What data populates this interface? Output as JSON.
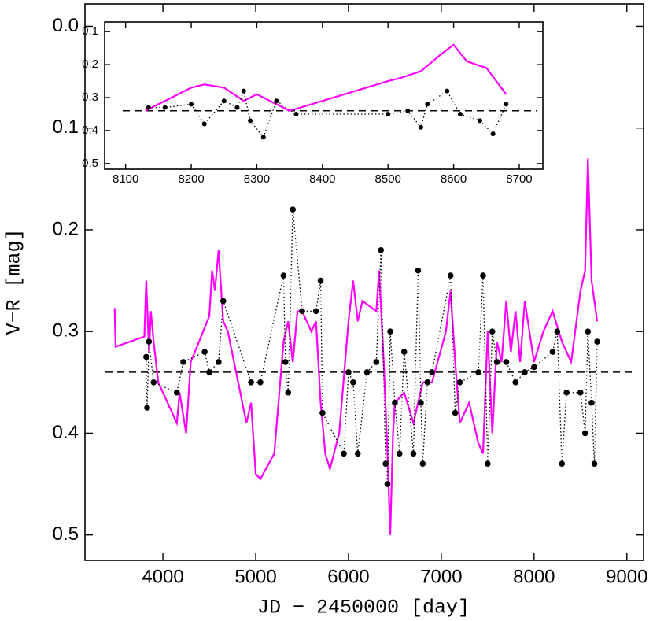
{
  "chart_data": [
    {
      "type": "line",
      "x_label": "JD − 2450000 [day]",
      "y_label": "V−R [mag]",
      "xlim": [
        3160,
        9180
      ],
      "ylim": [
        0.525,
        -0.022
      ],
      "xticks": [
        4000,
        5000,
        6000,
        7000,
        8000,
        9000
      ],
      "yticks": [
        {
          "value": 0,
          "label": "0.0"
        },
        0.1,
        0.2,
        0.3,
        0.4,
        0.5
      ],
      "reference_line": 0.34,
      "series": [
        {
          "mode": "line",
          "color": "#ff00ff",
          "x": [
            3480,
            3490,
            3800,
            3820,
            3850,
            3870,
            3900,
            3950,
            4150,
            4180,
            4250,
            4300,
            4500,
            4530,
            4560,
            4600,
            4650,
            4700,
            4900,
            4950,
            5000,
            5050,
            5200,
            5300,
            5350,
            5400,
            5450,
            5500,
            5600,
            5650,
            5700,
            5750,
            5800,
            5900,
            6000,
            6050,
            6100,
            6150,
            6300,
            6330,
            6380,
            6420,
            6450,
            6480,
            6500,
            6600,
            6700,
            6800,
            6900,
            7050,
            7100,
            7150,
            7200,
            7300,
            7400,
            7450,
            7500,
            7550,
            7600,
            7650,
            7700,
            7750,
            7800,
            7850,
            7900,
            8000,
            8100,
            8200,
            8300,
            8400,
            8500,
            8550,
            8580,
            8620,
            8680
          ],
          "values": [
            0.277,
            0.315,
            0.305,
            0.25,
            0.32,
            0.28,
            0.31,
            0.35,
            0.39,
            0.36,
            0.4,
            0.33,
            0.285,
            0.24,
            0.26,
            0.22,
            0.29,
            0.3,
            0.39,
            0.37,
            0.44,
            0.445,
            0.42,
            0.31,
            0.29,
            0.33,
            0.28,
            0.28,
            0.3,
            0.29,
            0.37,
            0.42,
            0.435,
            0.4,
            0.29,
            0.25,
            0.29,
            0.27,
            0.28,
            0.24,
            0.33,
            0.42,
            0.5,
            0.4,
            0.37,
            0.36,
            0.39,
            0.35,
            0.35,
            0.3,
            0.26,
            0.33,
            0.39,
            0.37,
            0.41,
            0.42,
            0.3,
            0.4,
            0.31,
            0.33,
            0.27,
            0.32,
            0.28,
            0.33,
            0.27,
            0.33,
            0.3,
            0.28,
            0.31,
            0.33,
            0.26,
            0.24,
            0.13,
            0.25,
            0.29
          ]
        },
        {
          "mode": "points",
          "color": "#000000",
          "x": [
            3820,
            3830,
            3850,
            3900,
            4150,
            4220,
            4450,
            4500,
            4600,
            4650,
            4950,
            5050,
            5300,
            5320,
            5350,
            5400,
            5500,
            5650,
            5700,
            5720,
            5950,
            6000,
            6050,
            6100,
            6200,
            6300,
            6350,
            6400,
            6420,
            6450,
            6500,
            6550,
            6600,
            6700,
            6750,
            6780,
            6800,
            6850,
            6900,
            7100,
            7150,
            7200,
            7400,
            7450,
            7500,
            7550,
            7600,
            7700,
            7800,
            7900,
            8000,
            8200,
            8250,
            8300,
            8350,
            8500,
            8550,
            8580,
            8620,
            8650,
            8680
          ],
          "values": [
            0.325,
            0.375,
            0.31,
            0.35,
            0.36,
            0.33,
            0.32,
            0.34,
            0.33,
            0.27,
            0.35,
            0.35,
            0.245,
            0.33,
            0.36,
            0.18,
            0.28,
            0.28,
            0.25,
            0.38,
            0.42,
            0.34,
            0.35,
            0.42,
            0.34,
            0.33,
            0.22,
            0.43,
            0.45,
            0.3,
            0.37,
            0.42,
            0.32,
            0.42,
            0.24,
            0.37,
            0.43,
            0.35,
            0.34,
            0.245,
            0.38,
            0.35,
            0.34,
            0.245,
            0.43,
            0.3,
            0.33,
            0.33,
            0.35,
            0.34,
            0.335,
            0.32,
            0.3,
            0.43,
            0.36,
            0.36,
            0.4,
            0.3,
            0.37,
            0.43,
            0.31
          ]
        }
      ]
    },
    {
      "type": "line",
      "xlim": [
        8068,
        8736
      ],
      "ylim": [
        0.517,
        0.071
      ],
      "xticks": [
        8100,
        8200,
        8300,
        8400,
        8500,
        8600,
        8700
      ],
      "yticks": [
        0.1,
        0.2,
        0.3,
        0.4,
        0.5
      ],
      "reference_line": 0.34,
      "series": [
        {
          "mode": "line",
          "color": "#ff00ff",
          "x": [
            8130,
            8200,
            8220,
            8250,
            8280,
            8300,
            8350,
            8500,
            8520,
            8550,
            8580,
            8600,
            8620,
            8650,
            8680
          ],
          "values": [
            0.34,
            0.27,
            0.26,
            0.27,
            0.31,
            0.29,
            0.34,
            0.25,
            0.24,
            0.22,
            0.17,
            0.14,
            0.19,
            0.21,
            0.29
          ]
        },
        {
          "mode": "points",
          "color": "#000000",
          "x": [
            8135,
            8160,
            8200,
            8220,
            8250,
            8270,
            8280,
            8290,
            8310,
            8330,
            8360,
            8500,
            8530,
            8550,
            8560,
            8590,
            8610,
            8640,
            8660,
            8680
          ],
          "values": [
            0.33,
            0.33,
            0.32,
            0.38,
            0.31,
            0.33,
            0.28,
            0.37,
            0.42,
            0.31,
            0.35,
            0.35,
            0.34,
            0.39,
            0.32,
            0.28,
            0.35,
            0.37,
            0.41,
            0.32
          ]
        }
      ]
    }
  ]
}
